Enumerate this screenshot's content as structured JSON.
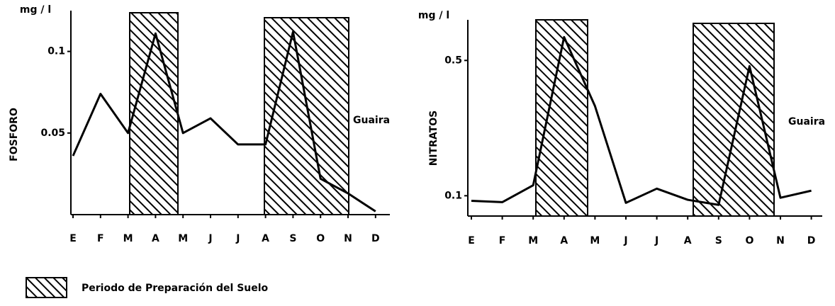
{
  "chart_data": [
    {
      "type": "line",
      "unit": "mg / l",
      "ylabel": "FOSFORO",
      "annotation": "Guaira",
      "categories": [
        "E",
        "F",
        "M",
        "A",
        "M",
        "J",
        "J",
        "A",
        "S",
        "O",
        "N",
        "D"
      ],
      "values": [
        0.036,
        0.074,
        0.05,
        0.111,
        0.05,
        0.059,
        0.043,
        0.043,
        0.112,
        0.022,
        0.013,
        0.002
      ],
      "color": "#000000",
      "ylim": [
        0,
        0.125
      ],
      "yticks": [
        0.05,
        0.1
      ]
    },
    {
      "type": "line",
      "unit": "mg / l",
      "ylabel": "NITRATOS",
      "annotation": "Guaira",
      "categories": [
        "E",
        "F",
        "M",
        "A",
        "M",
        "J",
        "J",
        "A",
        "S",
        "O",
        "N",
        "D"
      ],
      "values": [
        0.085,
        0.081,
        0.131,
        0.569,
        0.365,
        0.079,
        0.121,
        0.088,
        0.073,
        0.483,
        0.094,
        0.115
      ],
      "color": "#000000",
      "ylim": [
        0.04,
        0.62
      ],
      "yticks": [
        0.1,
        0.5
      ]
    }
  ],
  "legend": {
    "label": "Periodo de Preparación del Suelo"
  }
}
